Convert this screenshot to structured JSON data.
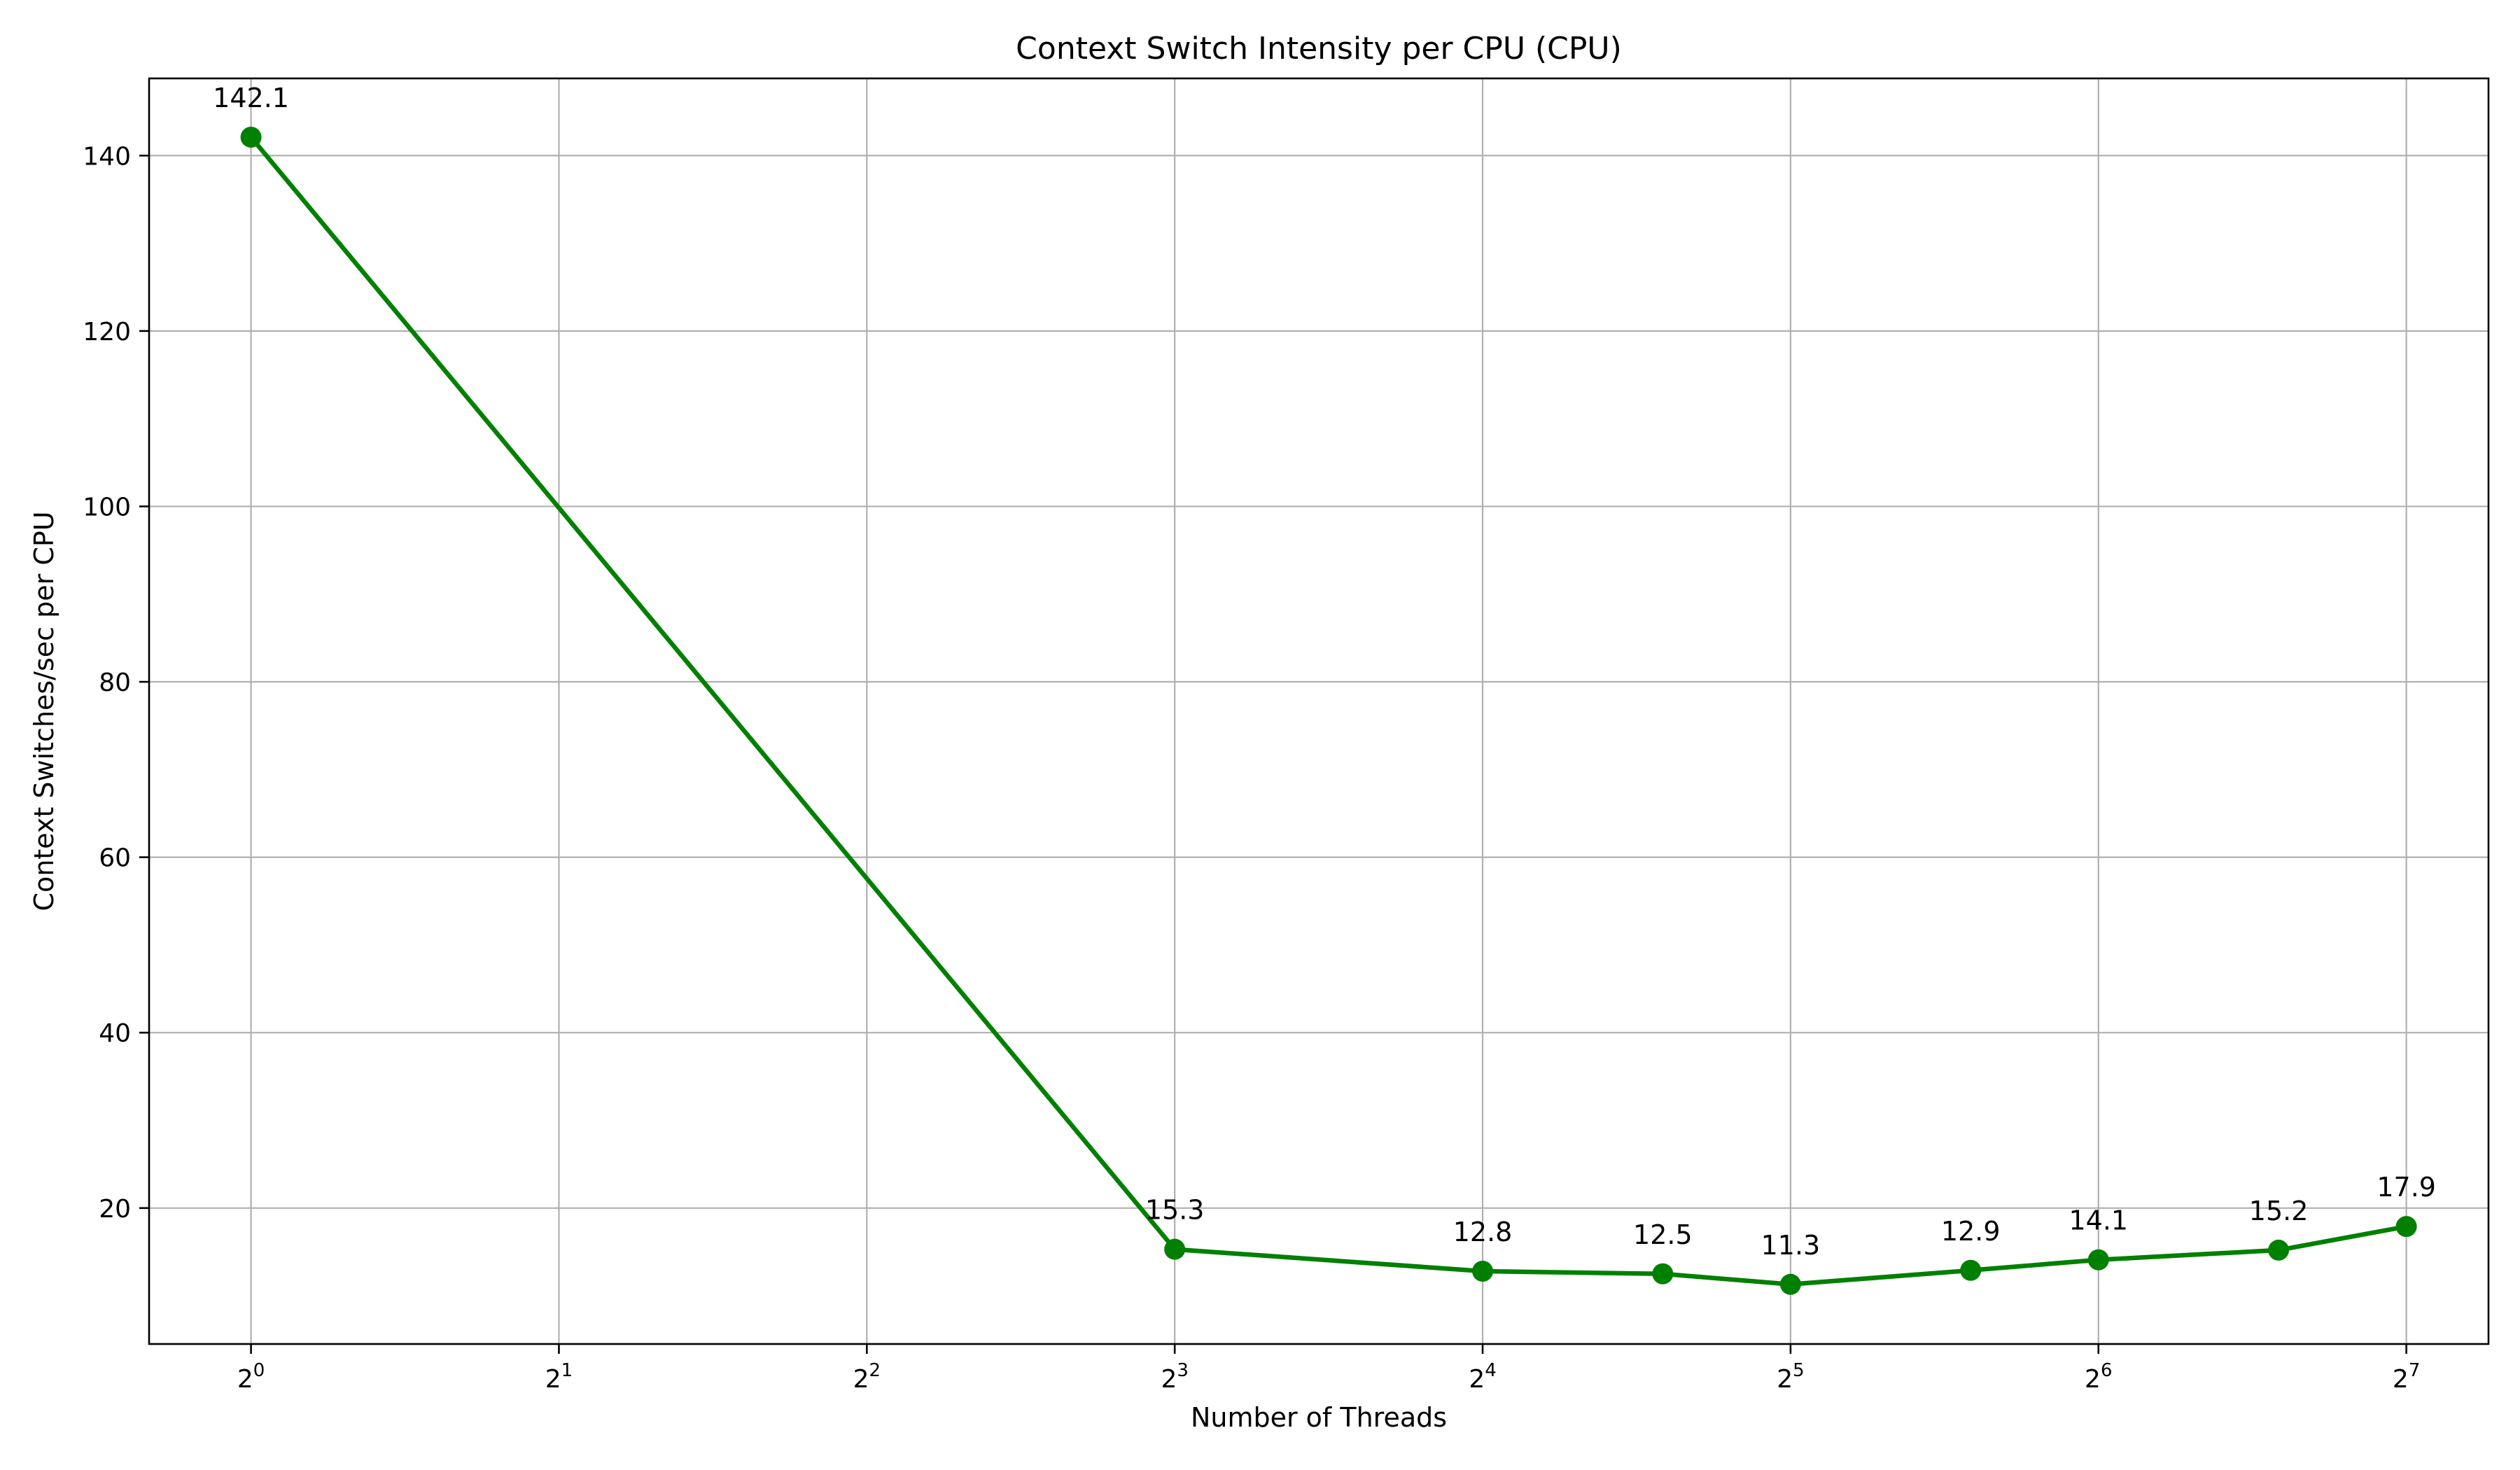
{
  "chart_data": {
    "type": "line",
    "title": "Context Switch Intensity per CPU (CPU)",
    "xlabel": "Number of Threads",
    "ylabel": "Context Switches/sec per CPU",
    "x_scale": "log2",
    "xlim": [
      0.795,
      154
    ],
    "ylim": [
      4.5,
      148.8
    ],
    "grid": true,
    "x_ticks": [
      {
        "value": 1,
        "base": "2",
        "exp": "0"
      },
      {
        "value": 2,
        "base": "2",
        "exp": "1"
      },
      {
        "value": 4,
        "base": "2",
        "exp": "2"
      },
      {
        "value": 8,
        "base": "2",
        "exp": "3"
      },
      {
        "value": 16,
        "base": "2",
        "exp": "4"
      },
      {
        "value": 32,
        "base": "2",
        "exp": "5"
      },
      {
        "value": 64,
        "base": "2",
        "exp": "6"
      },
      {
        "value": 128,
        "base": "2",
        "exp": "7"
      }
    ],
    "y_ticks": [
      20,
      40,
      60,
      80,
      100,
      120,
      140
    ],
    "series": [
      {
        "color": "#008000",
        "x": [
          1,
          8,
          16,
          24,
          32,
          48,
          64,
          96,
          128
        ],
        "y": [
          142.1,
          15.3,
          12.8,
          12.5,
          11.3,
          12.9,
          14.1,
          15.2,
          17.9
        ],
        "labels": [
          "142.1",
          "15.3",
          "12.8",
          "12.5",
          "11.3",
          "12.9",
          "14.1",
          "15.2",
          "17.9"
        ]
      }
    ]
  }
}
